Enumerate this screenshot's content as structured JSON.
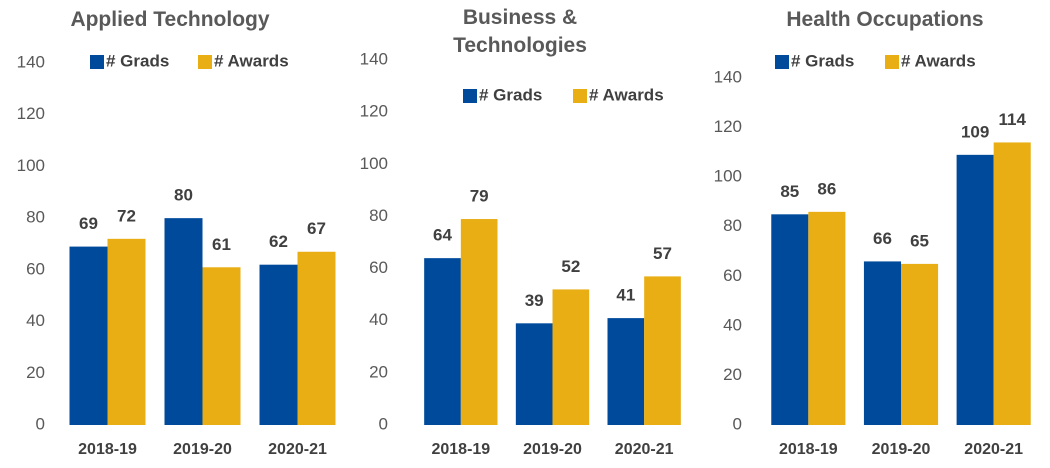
{
  "chart_data": [
    {
      "type": "bar",
      "title": "Applied Technology",
      "categories": [
        "2018-19",
        "2019-20",
        "2020-21"
      ],
      "series": [
        {
          "name": "# Grads",
          "color": "#004a9c",
          "values": [
            69,
            80,
            62
          ]
        },
        {
          "name": "# Awards",
          "color": "#e8ae14",
          "values": [
            72,
            61,
            67
          ]
        }
      ],
      "ylim": [
        0,
        140
      ],
      "yticks": [
        0,
        20,
        40,
        60,
        80,
        100,
        120,
        140
      ],
      "grid": false
    },
    {
      "type": "bar",
      "title": "Business & Technologies",
      "categories": [
        "2018-19",
        "2019-20",
        "2020-21"
      ],
      "series": [
        {
          "name": "# Grads",
          "color": "#004a9c",
          "values": [
            64,
            39,
            41
          ]
        },
        {
          "name": "# Awards",
          "color": "#e8ae14",
          "values": [
            79,
            52,
            57
          ]
        }
      ],
      "ylim": [
        0,
        140
      ],
      "yticks": [
        0,
        20,
        40,
        60,
        80,
        100,
        120,
        140
      ],
      "grid": false
    },
    {
      "type": "bar",
      "title": "Health Occupations",
      "categories": [
        "2018-19",
        "2019-20",
        "2020-21"
      ],
      "series": [
        {
          "name": "# Grads",
          "color": "#004a9c",
          "values": [
            85,
            66,
            109
          ]
        },
        {
          "name": "# Awards",
          "color": "#e8ae14",
          "values": [
            86,
            65,
            114
          ]
        }
      ],
      "ylim": [
        0,
        140
      ],
      "yticks": [
        0,
        20,
        40,
        60,
        80,
        100,
        120,
        140
      ],
      "grid": false
    }
  ]
}
